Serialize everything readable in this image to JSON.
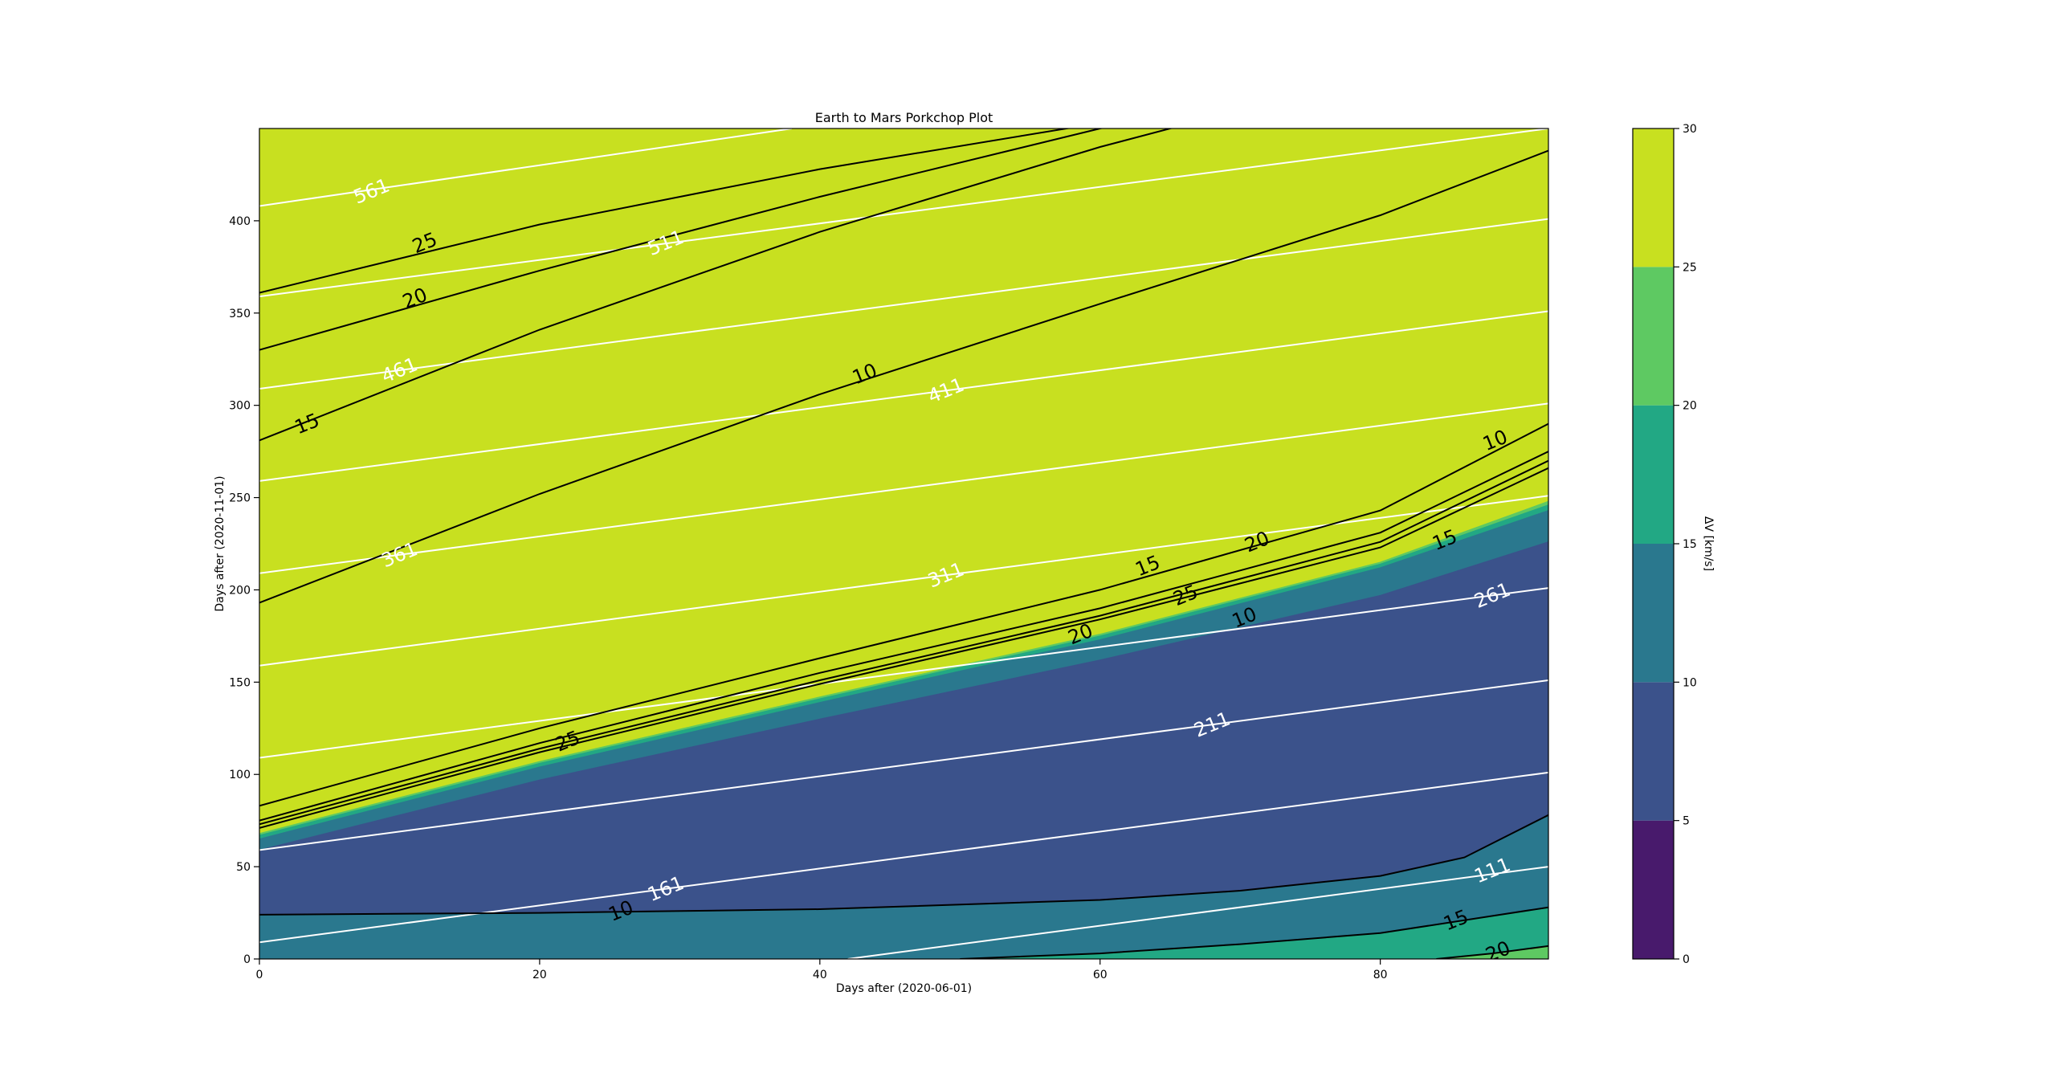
{
  "chart_data": {
    "type": "contour",
    "title": "Earth to Mars Porkchop Plot",
    "xlabel": "Days after (2020-06-01)",
    "ylabel": "Days after (2020-11-01)",
    "xlim": [
      0,
      92
    ],
    "ylim": [
      0,
      450
    ],
    "xticks": [
      0,
      20,
      40,
      60,
      80
    ],
    "yticks": [
      0,
      50,
      100,
      150,
      200,
      250,
      300,
      350,
      400
    ],
    "colorbar": {
      "label": "ΔV [km/s]",
      "levels": [
        0,
        5,
        10,
        15,
        20,
        25,
        30
      ],
      "colors": [
        "#481a6c",
        "#3b528b",
        "#2a788e",
        "#22a884",
        "#5ec962",
        "#c8e020"
      ]
    },
    "filled_regions_top_to_bottom": [
      {
        "level_min": 25,
        "level_max": 30,
        "color": "#c8e020",
        "upper_boundary": "top",
        "lower_boundary": [
          [
            0,
            68
          ],
          [
            20,
            107
          ],
          [
            40,
            142
          ],
          [
            60,
            176
          ],
          [
            80,
            215
          ],
          [
            92,
            248
          ]
        ]
      },
      {
        "level_min": 20,
        "level_max": 25,
        "color": "#5ec962",
        "upper_boundary": [
          [
            0,
            68
          ],
          [
            20,
            107
          ],
          [
            40,
            142
          ],
          [
            60,
            176
          ],
          [
            80,
            215
          ],
          [
            92,
            248
          ]
        ],
        "lower_boundary": [
          [
            0,
            67
          ],
          [
            20,
            106
          ],
          [
            40,
            141
          ],
          [
            60,
            175
          ],
          [
            80,
            214
          ],
          [
            92,
            246
          ]
        ]
      },
      {
        "level_min": 15,
        "level_max": 20,
        "color": "#22a884",
        "upper_boundary": [
          [
            0,
            67
          ],
          [
            20,
            106
          ],
          [
            40,
            141
          ],
          [
            60,
            175
          ],
          [
            80,
            214
          ],
          [
            92,
            246
          ]
        ],
        "lower_boundary": [
          [
            0,
            65
          ],
          [
            20,
            104
          ],
          [
            40,
            139
          ],
          [
            60,
            173
          ],
          [
            80,
            212
          ],
          [
            92,
            243
          ]
        ]
      },
      {
        "level_min": 10,
        "level_max": 15,
        "color": "#2a788e",
        "upper_boundary": [
          [
            0,
            65
          ],
          [
            20,
            104
          ],
          [
            40,
            139
          ],
          [
            60,
            173
          ],
          [
            80,
            212
          ],
          [
            92,
            243
          ]
        ],
        "lower_boundary": [
          [
            0,
            59
          ],
          [
            20,
            97
          ],
          [
            40,
            130
          ],
          [
            60,
            162
          ],
          [
            80,
            197
          ],
          [
            92,
            226
          ]
        ]
      },
      {
        "level_min": 5,
        "level_max": 10,
        "color": "#3b528b",
        "upper_boundary": [
          [
            0,
            59
          ],
          [
            20,
            97
          ],
          [
            40,
            130
          ],
          [
            60,
            162
          ],
          [
            80,
            197
          ],
          [
            92,
            226
          ]
        ],
        "lower_boundary": [
          [
            0,
            24
          ],
          [
            20,
            25
          ],
          [
            40,
            27
          ],
          [
            60,
            32
          ],
          [
            70,
            37
          ],
          [
            80,
            45
          ],
          [
            86,
            55
          ],
          [
            92,
            78
          ]
        ]
      },
      {
        "level_min": 10,
        "level_max": 15,
        "color": "#2a788e",
        "upper_boundary": [
          [
            0,
            24
          ],
          [
            20,
            25
          ],
          [
            40,
            27
          ],
          [
            60,
            32
          ],
          [
            70,
            37
          ],
          [
            80,
            45
          ],
          [
            86,
            55
          ],
          [
            92,
            78
          ]
        ],
        "lower_boundary": [
          [
            0,
            0
          ],
          [
            50,
            0
          ],
          [
            60,
            3
          ],
          [
            70,
            8
          ],
          [
            80,
            14
          ],
          [
            92,
            28
          ]
        ]
      },
      {
        "level_min": 15,
        "level_max": 20,
        "color": "#22a884",
        "upper_boundary": [
          [
            0,
            0
          ],
          [
            50,
            0
          ],
          [
            60,
            3
          ],
          [
            70,
            8
          ],
          [
            80,
            14
          ],
          [
            92,
            28
          ]
        ],
        "lower_boundary": [
          [
            82,
            0
          ],
          [
            92,
            0
          ]
        ]
      },
      {
        "level_min": 20,
        "level_max": 25,
        "color": "#5ec962",
        "upper_boundary": [
          [
            84,
            0
          ],
          [
            88,
            3
          ],
          [
            92,
            7
          ]
        ],
        "lower_boundary": [
          [
            84,
            0
          ],
          [
            92,
            0
          ]
        ]
      }
    ],
    "dv_contour_lines": [
      {
        "level": 25,
        "label": "25",
        "points": [
          [
            0,
            361
          ],
          [
            20,
            398
          ],
          [
            40,
            428
          ],
          [
            60,
            453
          ]
        ]
      },
      {
        "level": 20,
        "label": "20",
        "points": [
          [
            0,
            330
          ],
          [
            20,
            373
          ],
          [
            40,
            413
          ],
          [
            60,
            450
          ],
          [
            67,
            462
          ]
        ]
      },
      {
        "level": 15,
        "label": "15",
        "points": [
          [
            0,
            281
          ],
          [
            20,
            341
          ],
          [
            40,
            394
          ],
          [
            60,
            440
          ],
          [
            75,
            470
          ]
        ]
      },
      {
        "level": 10,
        "label": "10",
        "points": [
          [
            0,
            193
          ],
          [
            20,
            252
          ],
          [
            40,
            306
          ],
          [
            60,
            355
          ],
          [
            80,
            403
          ],
          [
            92,
            438
          ]
        ]
      },
      {
        "level": 10,
        "label": "10",
        "points": [
          [
            0,
            83
          ],
          [
            20,
            125
          ],
          [
            40,
            163
          ],
          [
            60,
            200
          ],
          [
            80,
            243
          ],
          [
            92,
            290
          ]
        ]
      },
      {
        "level": 15,
        "label": "15",
        "points": [
          [
            0,
            75
          ],
          [
            20,
            117
          ],
          [
            40,
            155
          ],
          [
            60,
            190
          ],
          [
            80,
            231
          ],
          [
            92,
            275
          ]
        ]
      },
      {
        "level": 20,
        "label": "20",
        "points": [
          [
            0,
            73
          ],
          [
            20,
            114
          ],
          [
            40,
            151
          ],
          [
            60,
            186
          ],
          [
            80,
            226
          ],
          [
            92,
            270
          ]
        ]
      },
      {
        "level": 25,
        "label": "25",
        "points": [
          [
            0,
            71
          ],
          [
            20,
            112
          ],
          [
            40,
            149
          ],
          [
            60,
            184
          ],
          [
            80,
            223
          ],
          [
            92,
            266
          ]
        ]
      },
      {
        "level": 10,
        "label": "10",
        "points": [
          [
            0,
            24
          ],
          [
            20,
            25
          ],
          [
            40,
            27
          ],
          [
            60,
            32
          ],
          [
            70,
            37
          ],
          [
            80,
            45
          ],
          [
            86,
            55
          ],
          [
            92,
            78
          ]
        ]
      },
      {
        "level": 15,
        "label": "15",
        "points": [
          [
            50,
            0
          ],
          [
            60,
            3
          ],
          [
            70,
            8
          ],
          [
            80,
            14
          ],
          [
            92,
            28
          ]
        ]
      },
      {
        "level": 20,
        "label": "20",
        "points": [
          [
            84,
            0
          ],
          [
            88,
            3
          ],
          [
            92,
            7
          ]
        ]
      }
    ],
    "dv_contour_labels": [
      {
        "text": "25",
        "x": 11.8,
        "y": 388
      },
      {
        "text": "20",
        "x": 11.1,
        "y": 358
      },
      {
        "text": "15",
        "x": 3.4,
        "y": 290
      },
      {
        "text": "10",
        "x": 43.2,
        "y": 317
      },
      {
        "text": "10",
        "x": 88.2,
        "y": 281
      },
      {
        "text": "15",
        "x": 63.4,
        "y": 213
      },
      {
        "text": "20",
        "x": 71.2,
        "y": 226
      },
      {
        "text": "25",
        "x": 66.1,
        "y": 197
      },
      {
        "text": "10",
        "x": 70.3,
        "y": 185
      },
      {
        "text": "20",
        "x": 58.6,
        "y": 176
      },
      {
        "text": "15",
        "x": 84.6,
        "y": 227
      },
      {
        "text": "25",
        "x": 22.0,
        "y": 118
      },
      {
        "text": "10",
        "x": 25.8,
        "y": 26
      },
      {
        "text": "15",
        "x": 85.4,
        "y": 21
      },
      {
        "text": "20",
        "x": 88.4,
        "y": 4
      }
    ],
    "tof_contour_lines": [
      {
        "label": "561",
        "points": [
          [
            0,
            408
          ],
          [
            38,
            450
          ]
        ]
      },
      {
        "label": "511",
        "points": [
          [
            0,
            359
          ],
          [
            92,
            450
          ]
        ]
      },
      {
        "label": "461",
        "points": [
          [
            0,
            309
          ],
          [
            92,
            401
          ]
        ]
      },
      {
        "label": "411",
        "points": [
          [
            0,
            259
          ],
          [
            92,
            351
          ]
        ]
      },
      {
        "label": "361",
        "points": [
          [
            0,
            209
          ],
          [
            92,
            301
          ]
        ]
      },
      {
        "label": "311",
        "points": [
          [
            0,
            159
          ],
          [
            92,
            251
          ]
        ]
      },
      {
        "label": "261",
        "points": [
          [
            0,
            109
          ],
          [
            92,
            201
          ]
        ]
      },
      {
        "label": "211",
        "points": [
          [
            0,
            59
          ],
          [
            92,
            151
          ]
        ]
      },
      {
        "label": "161",
        "points": [
          [
            0,
            9
          ],
          [
            92,
            101
          ]
        ]
      },
      {
        "label": "111",
        "points": [
          [
            42,
            0
          ],
          [
            92,
            50
          ]
        ]
      }
    ],
    "tof_contour_labels": [
      {
        "text": "561",
        "x": 8.0,
        "y": 416
      },
      {
        "text": "511",
        "x": 29.0,
        "y": 388
      },
      {
        "text": "461",
        "x": 10.0,
        "y": 319
      },
      {
        "text": "411",
        "x": 49.0,
        "y": 308
      },
      {
        "text": "361",
        "x": 10.0,
        "y": 219
      },
      {
        "text": "311",
        "x": 49.0,
        "y": 208
      },
      {
        "text": "261",
        "x": 88.0,
        "y": 197
      },
      {
        "text": "211",
        "x": 68.0,
        "y": 127
      },
      {
        "text": "161",
        "x": 29.0,
        "y": 38
      },
      {
        "text": "111",
        "x": 88.0,
        "y": 48
      }
    ]
  }
}
